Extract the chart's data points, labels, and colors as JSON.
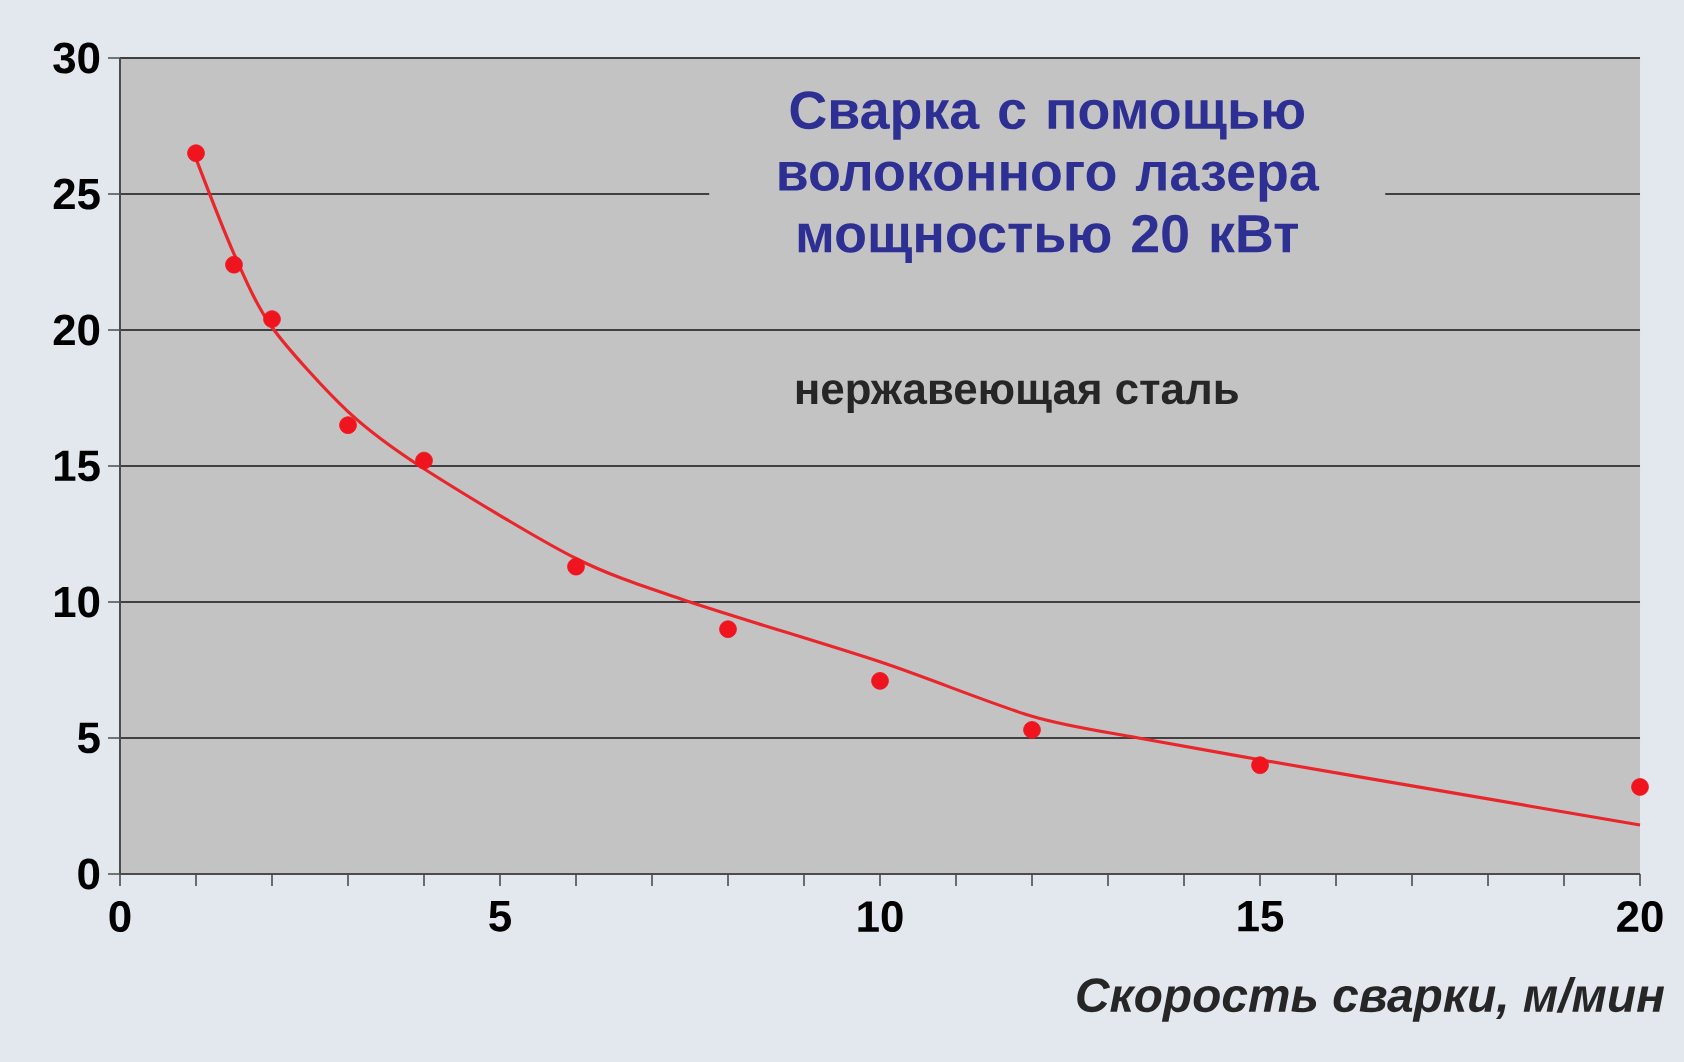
{
  "chart_data": {
    "type": "scatter",
    "title": "Сварка с помощью волоконного лазера мощностью 20 кВт",
    "xlabel": "Скорость сварки, м/мин",
    "annotations": [
      "нержавеющая сталь"
    ],
    "xlim": [
      0,
      20
    ],
    "ylim": [
      0,
      30
    ],
    "xticks": [
      0,
      {
        "value": 1,
        "label": null
      },
      {
        "value": 2,
        "label": null
      },
      {
        "value": 3,
        "label": null
      },
      {
        "value": 4,
        "label": null
      },
      5,
      {
        "value": 6,
        "label": null
      },
      {
        "value": 7,
        "label": null
      },
      {
        "value": 8,
        "label": null
      },
      {
        "value": 9,
        "label": null
      },
      10,
      {
        "value": 11,
        "label": null
      },
      {
        "value": 12,
        "label": null
      },
      {
        "value": 13,
        "label": null
      },
      {
        "value": 14,
        "label": null
      },
      15,
      {
        "value": 16,
        "label": null
      },
      {
        "value": 17,
        "label": null
      },
      {
        "value": 18,
        "label": null
      },
      {
        "value": 19,
        "label": null
      },
      20
    ],
    "yticks": [
      0,
      5,
      10,
      15,
      20,
      25,
      30
    ],
    "grid": "y",
    "series": [
      {
        "type": "line",
        "color": "#e8262b",
        "marker": "none",
        "line_style": "solid",
        "x": [
          1,
          1.5,
          2,
          3,
          4,
          6,
          7.5,
          10,
          12,
          13.4,
          15,
          17.5,
          20
        ],
        "values": [
          26.3,
          22.8,
          20.1,
          17.0,
          14.9,
          11.6,
          10.0,
          7.8,
          5.8,
          5.0,
          4.2,
          3.0,
          1.8
        ]
      },
      {
        "color": "#f0141e",
        "marker": "circle",
        "x": [
          1,
          1.5,
          2,
          3,
          4,
          6,
          8,
          10,
          12,
          15,
          20
        ],
        "values": [
          26.5,
          22.4,
          20.4,
          16.5,
          15.2,
          11.3,
          9.0,
          7.1,
          5.3,
          4.0,
          3.2
        ]
      }
    ]
  }
}
